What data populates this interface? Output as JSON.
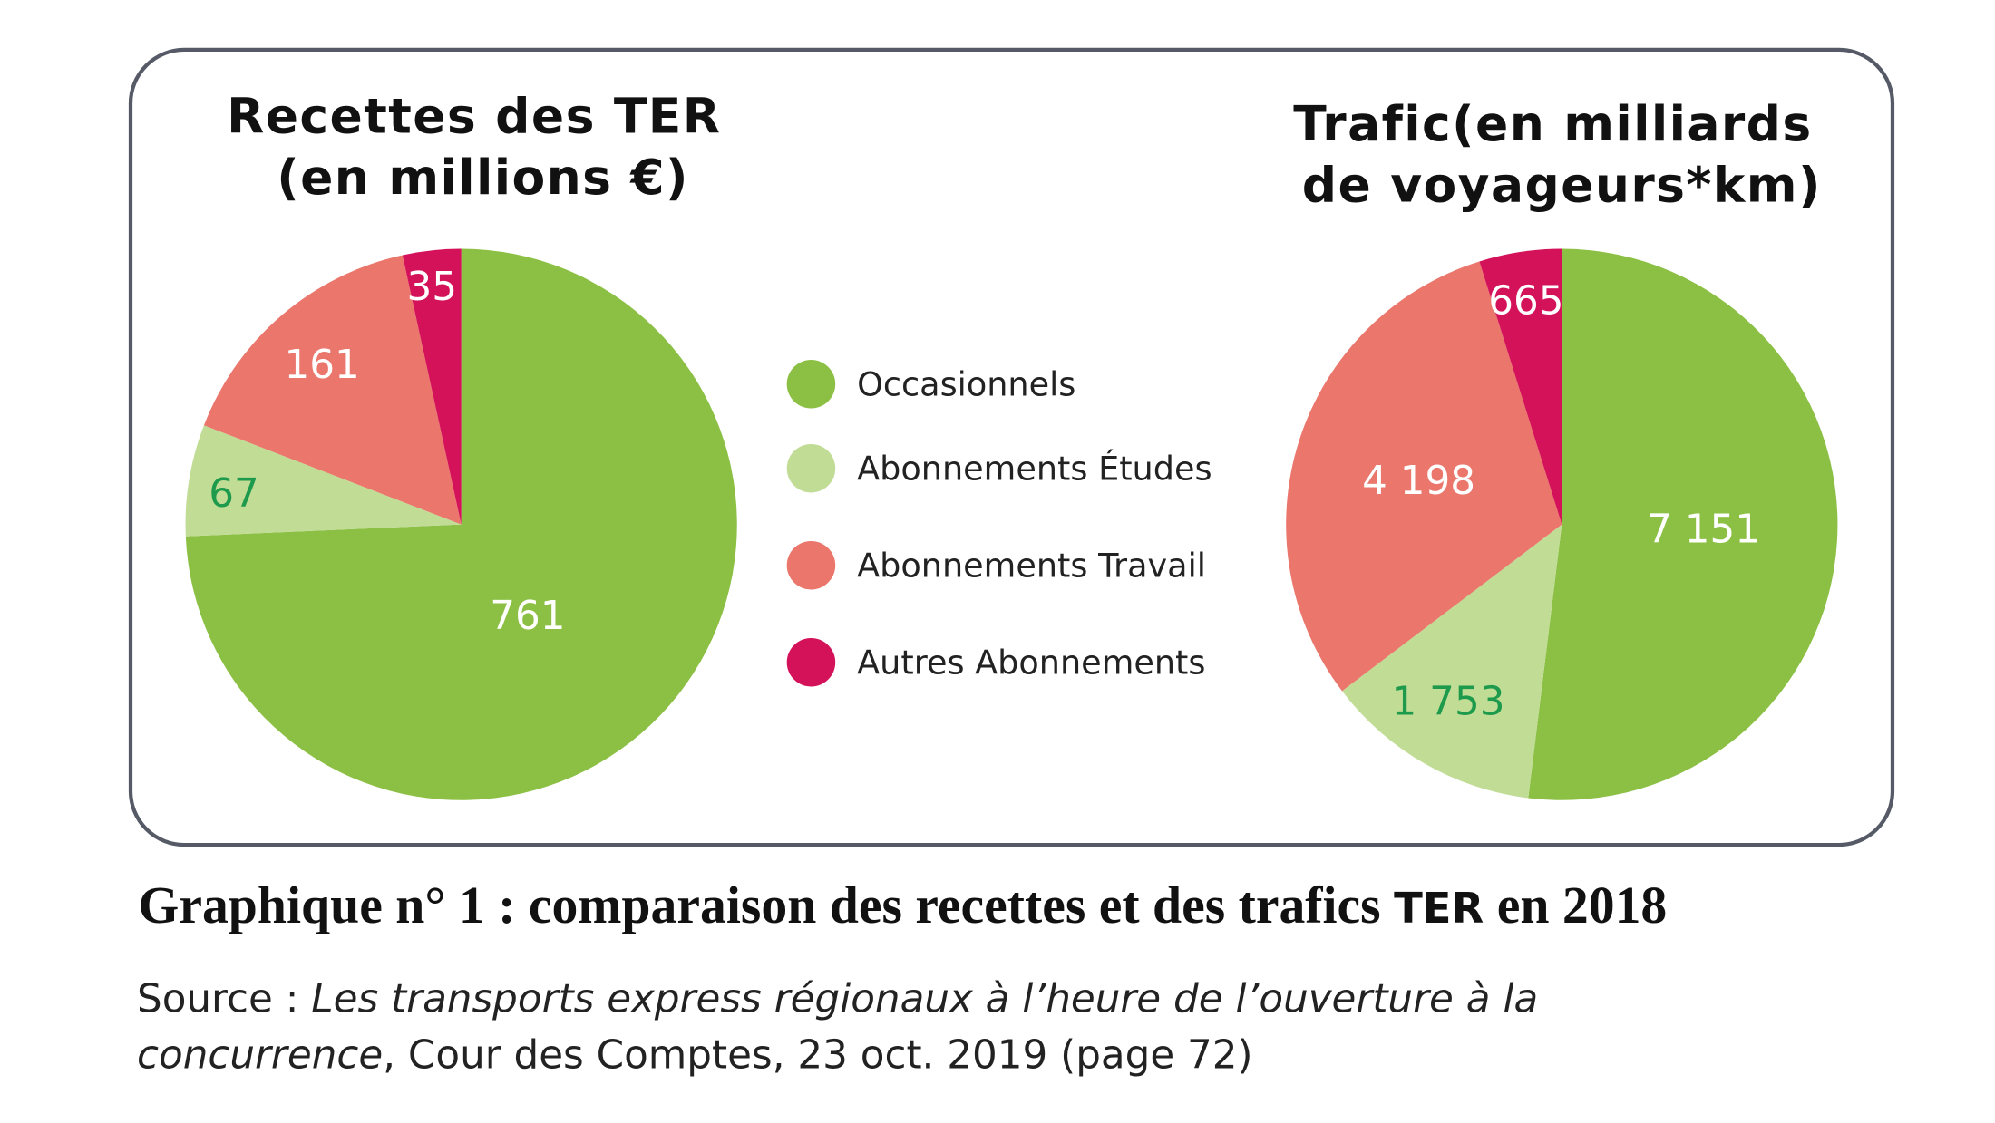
{
  "chart_data": [
    {
      "type": "pie",
      "title_lines": [
        "Recettes des TER",
        "(en millions €)"
      ],
      "categories": [
        "Occasionnels",
        "Abonnements Études",
        "Abonnements Travail",
        "Autres Abonnements"
      ],
      "values": [
        761,
        67,
        161,
        35
      ],
      "labels": [
        "761",
        "67",
        "161",
        "35"
      ]
    },
    {
      "type": "pie",
      "title_lines": [
        "Trafic(en milliards",
        "de voyageurs*km)"
      ],
      "categories": [
        "Occasionnels",
        "Abonnements Études",
        "Abonnements Travail",
        "Autres Abonnements"
      ],
      "values": [
        7151,
        1753,
        4198,
        665
      ],
      "labels": [
        "7 151",
        "1 753",
        "4 198",
        "665"
      ]
    }
  ],
  "legend": [
    "Occasionnels",
    "Abonnements Études",
    "Abonnements Travail",
    "Autres Abonnements"
  ],
  "colors": [
    "#8cc045",
    "#c1dc95",
    "#ea766c",
    "#d3125a"
  ],
  "label_colors": [
    "#ffffff",
    "#1e9a4c",
    "#ffffff",
    "#ffffff"
  ],
  "caption": {
    "part1": "Graphique n° 1  : comparaison des recettes et des trafics ",
    "ter": "TER",
    "part2": " en 2018"
  },
  "source": {
    "prefix": "Source : ",
    "italic1": "Les transports express régionaux à l’heure de l’ouverture à la",
    "italic2": "concurrence",
    "rest": ", Cour des Comptes, 23 oct. 2019 (page 72)"
  }
}
